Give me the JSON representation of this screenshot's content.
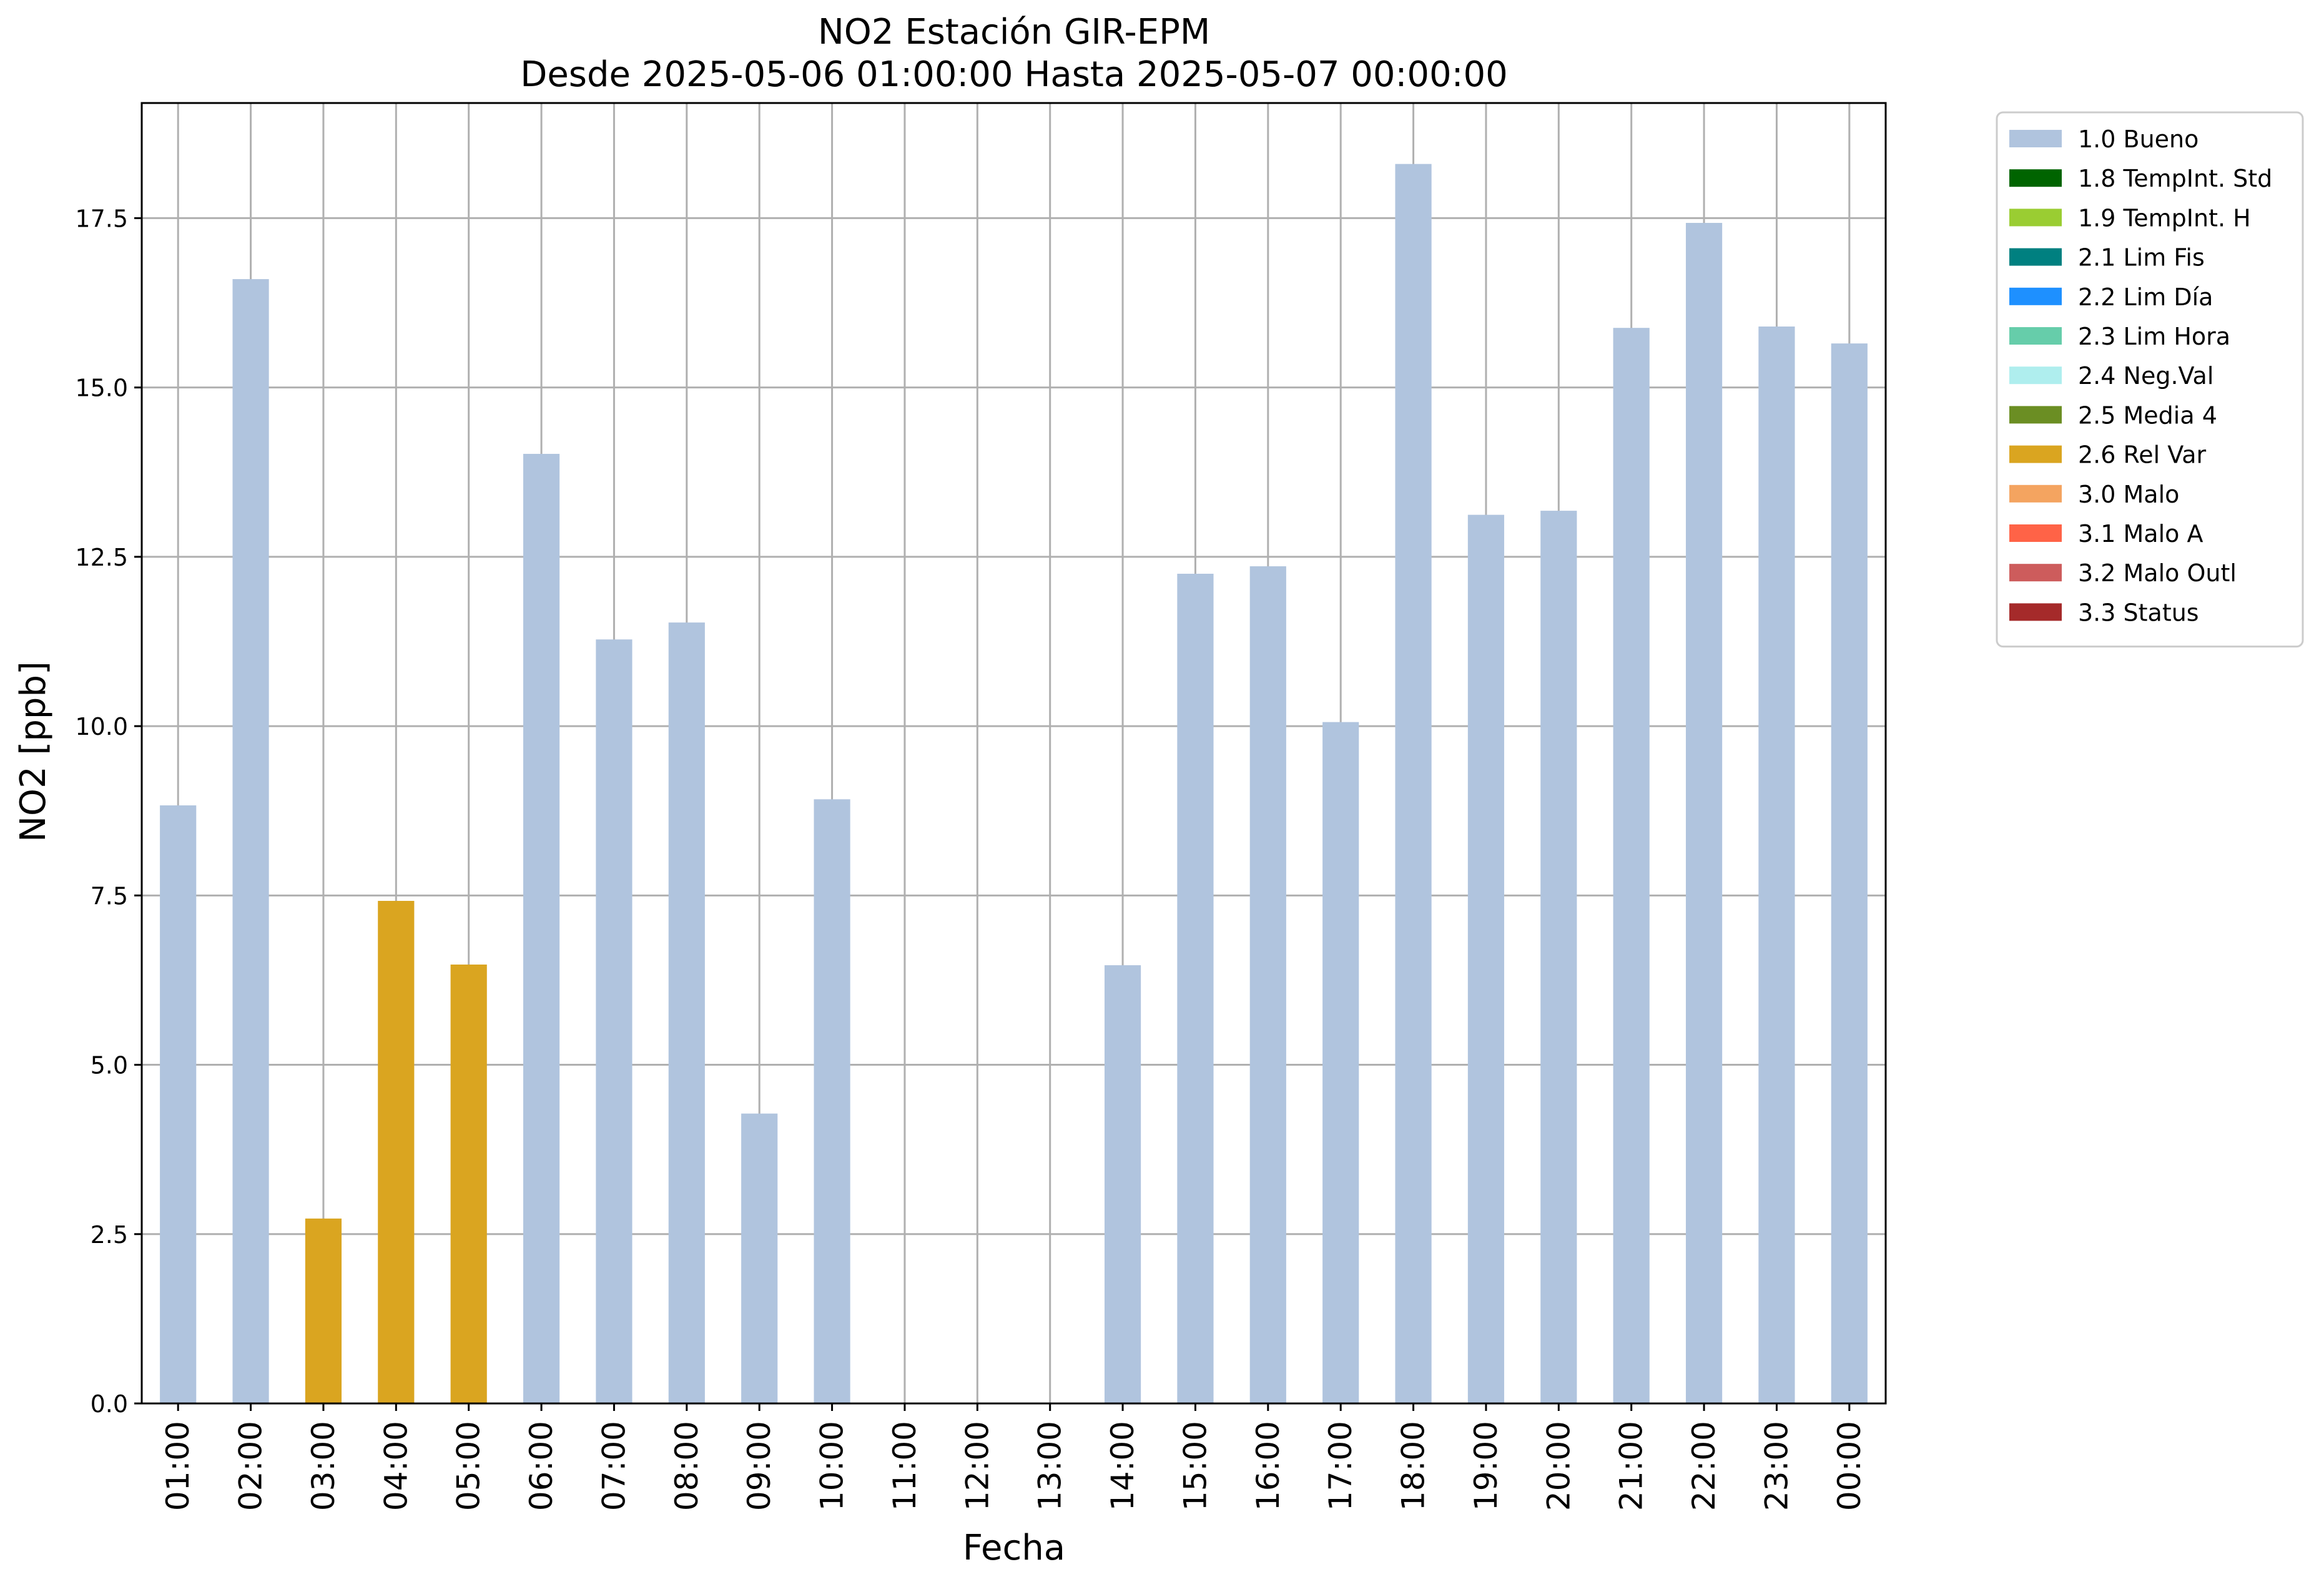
{
  "chart_data": {
    "type": "bar",
    "title": "NO2 Estación GIR-EPM",
    "subtitle": "Desde 2025-05-06 01:00:00 Hasta 2025-05-07 00:00:00",
    "xlabel": "Fecha",
    "ylabel": "NO2 [ppb]",
    "ylim": [
      0,
      19.2
    ],
    "yticks": [
      "0.0",
      "2.5",
      "5.0",
      "7.5",
      "10.0",
      "12.5",
      "15.0",
      "17.5"
    ],
    "grid": true,
    "legend_position": "outside-top-right",
    "categories": [
      "01:00",
      "02:00",
      "03:00",
      "04:00",
      "05:00",
      "06:00",
      "07:00",
      "08:00",
      "09:00",
      "10:00",
      "11:00",
      "12:00",
      "13:00",
      "14:00",
      "15:00",
      "16:00",
      "17:00",
      "18:00",
      "19:00",
      "20:00",
      "21:00",
      "22:00",
      "23:00",
      "00:00"
    ],
    "values": [
      8.83,
      16.6,
      2.73,
      7.42,
      6.48,
      14.02,
      11.28,
      11.53,
      4.28,
      8.92,
      null,
      null,
      null,
      6.47,
      12.25,
      12.36,
      10.06,
      18.3,
      13.12,
      13.18,
      15.88,
      17.43,
      15.9,
      15.65
    ],
    "flags": [
      "1.0 Bueno",
      "1.0 Bueno",
      "2.6 Rel Var",
      "2.6 Rel Var",
      "2.6 Rel Var",
      "1.0 Bueno",
      "1.0 Bueno",
      "1.0 Bueno",
      "1.0 Bueno",
      "1.0 Bueno",
      null,
      null,
      null,
      "1.0 Bueno",
      "1.0 Bueno",
      "1.0 Bueno",
      "1.0 Bueno",
      "1.0 Bueno",
      "1.0 Bueno",
      "1.0 Bueno",
      "1.0 Bueno",
      "1.0 Bueno",
      "1.0 Bueno",
      "1.0 Bueno"
    ],
    "legend": [
      {
        "label": "1.0 Bueno",
        "color": "#b0c4de"
      },
      {
        "label": "1.8 TempInt. Std",
        "color": "#006400"
      },
      {
        "label": "1.9 TempInt. H",
        "color": "#9acd32"
      },
      {
        "label": "2.1 Lim Fis",
        "color": "#008080"
      },
      {
        "label": "2.2 Lim Día",
        "color": "#1e90ff"
      },
      {
        "label": "2.3 Lim Hora",
        "color": "#66cdaa"
      },
      {
        "label": "2.4 Neg.Val",
        "color": "#afeeee"
      },
      {
        "label": "2.5 Media 4",
        "color": "#6b8e23"
      },
      {
        "label": "2.6 Rel Var",
        "color": "#daa520"
      },
      {
        "label": "3.0 Malo",
        "color": "#f4a460"
      },
      {
        "label": "3.1 Malo A",
        "color": "#ff6347"
      },
      {
        "label": "3.2 Malo Outl",
        "color": "#cd5c5c"
      },
      {
        "label": "3.3 Status",
        "color": "#a52a2a"
      }
    ]
  }
}
